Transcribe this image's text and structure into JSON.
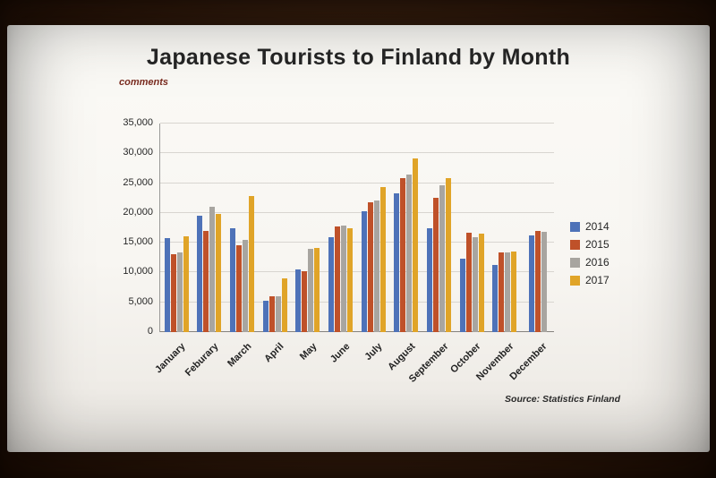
{
  "chart_data": {
    "type": "bar",
    "title": "Japanese Tourists to Finland by Month",
    "ylabel": "comments",
    "source_note": "Source: Statistics Finland",
    "categories": [
      "January",
      "Feburary",
      "March",
      "April",
      "May",
      "June",
      "July",
      "August",
      "September",
      "October",
      "November",
      "December"
    ],
    "series": [
      {
        "name": "2014",
        "color": "#4e72b8",
        "values": [
          15700,
          19600,
          17400,
          5300,
          10500,
          16000,
          20300,
          23300,
          17400,
          12300,
          11300,
          16300
        ]
      },
      {
        "name": "2015",
        "color": "#bf5129",
        "values": [
          13000,
          17000,
          14600,
          6000,
          10200,
          17700,
          21800,
          25900,
          22500,
          16700,
          13400,
          17000
        ]
      },
      {
        "name": "2016",
        "color": "#a8a5a0",
        "values": [
          13400,
          21000,
          15500,
          6000,
          13900,
          17900,
          22100,
          26500,
          24600,
          15900,
          13300,
          16800
        ]
      },
      {
        "name": "2017",
        "color": "#e0a428",
        "values": [
          16100,
          19800,
          22900,
          9000,
          14100,
          17400,
          24300,
          29200,
          25900,
          16500,
          13500,
          null
        ]
      }
    ],
    "ylim": [
      0,
      35000
    ],
    "ytick_step": 5000,
    "ytick_labels": [
      "0",
      "5,000",
      "10,000",
      "15,000",
      "20,000",
      "25,000",
      "30,000",
      "35,000"
    ],
    "grid": true,
    "legend_position": "right"
  }
}
